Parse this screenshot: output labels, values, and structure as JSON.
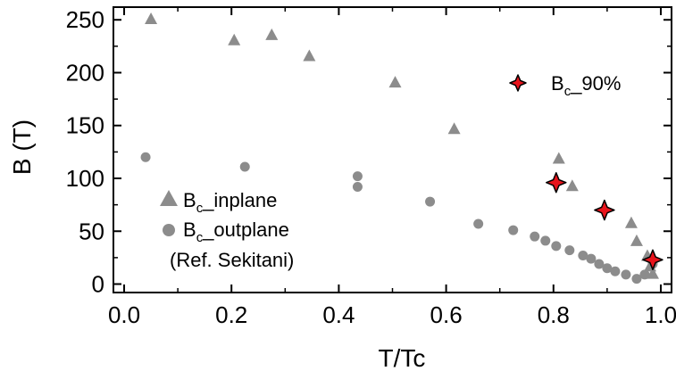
{
  "chart_data": {
    "type": "scatter",
    "title": "",
    "xlabel": "T/Tc",
    "ylabel": "B (T)",
    "xlim": [
      -0.02,
      1.02
    ],
    "ylim": [
      -8,
      262
    ],
    "xticks": [
      0.0,
      0.2,
      0.4,
      0.6,
      0.8,
      1.0
    ],
    "xtick_labels": [
      "0.0",
      "0.2",
      "0.4",
      "0.6",
      "0.8",
      "1.0"
    ],
    "yticks": [
      0,
      50,
      100,
      150,
      200,
      250
    ],
    "ytick_labels": [
      "0",
      "50",
      "100",
      "150",
      "200",
      "250"
    ],
    "grid": false,
    "legends": [
      {
        "placement": "lower-left",
        "entries": [
          {
            "series": "inplane",
            "label_main": "B",
            "label_sub": "c",
            "label_rest": "_inplane"
          },
          {
            "series": "outplane",
            "label_main": "B",
            "label_sub": "c",
            "label_rest": "_outplane"
          }
        ],
        "note": "(Ref. Sekitani)"
      },
      {
        "placement": "upper-right",
        "entries": [
          {
            "series": "bc90",
            "label_main": "B",
            "label_sub": "c",
            "label_rest": "_90%"
          }
        ]
      }
    ],
    "series": [
      {
        "key": "inplane",
        "marker": "triangle",
        "color": "#8c8c8c",
        "x": [
          0.05,
          0.205,
          0.275,
          0.345,
          0.505,
          0.615,
          0.81,
          0.835,
          0.945,
          0.955,
          0.975,
          0.98,
          0.985
        ],
        "y": [
          251,
          231,
          236,
          216,
          191,
          147,
          119,
          93,
          58,
          41,
          27,
          17,
          10
        ]
      },
      {
        "key": "outplane",
        "marker": "circle",
        "color": "#8c8c8c",
        "x": [
          0.04,
          0.225,
          0.435,
          0.435,
          0.57,
          0.66,
          0.725,
          0.765,
          0.785,
          0.805,
          0.83,
          0.855,
          0.87,
          0.885,
          0.9,
          0.915,
          0.935,
          0.955,
          0.97,
          0.985
        ],
        "y": [
          120,
          111,
          102,
          92,
          78,
          57,
          51,
          45,
          41,
          36,
          32,
          27,
          24,
          19,
          15,
          12,
          9,
          5,
          9,
          19
        ]
      },
      {
        "key": "bc90",
        "marker": "star",
        "color": "#e8141c",
        "x": [
          0.805,
          0.895,
          0.985
        ],
        "y": [
          96,
          70,
          23
        ]
      }
    ]
  }
}
